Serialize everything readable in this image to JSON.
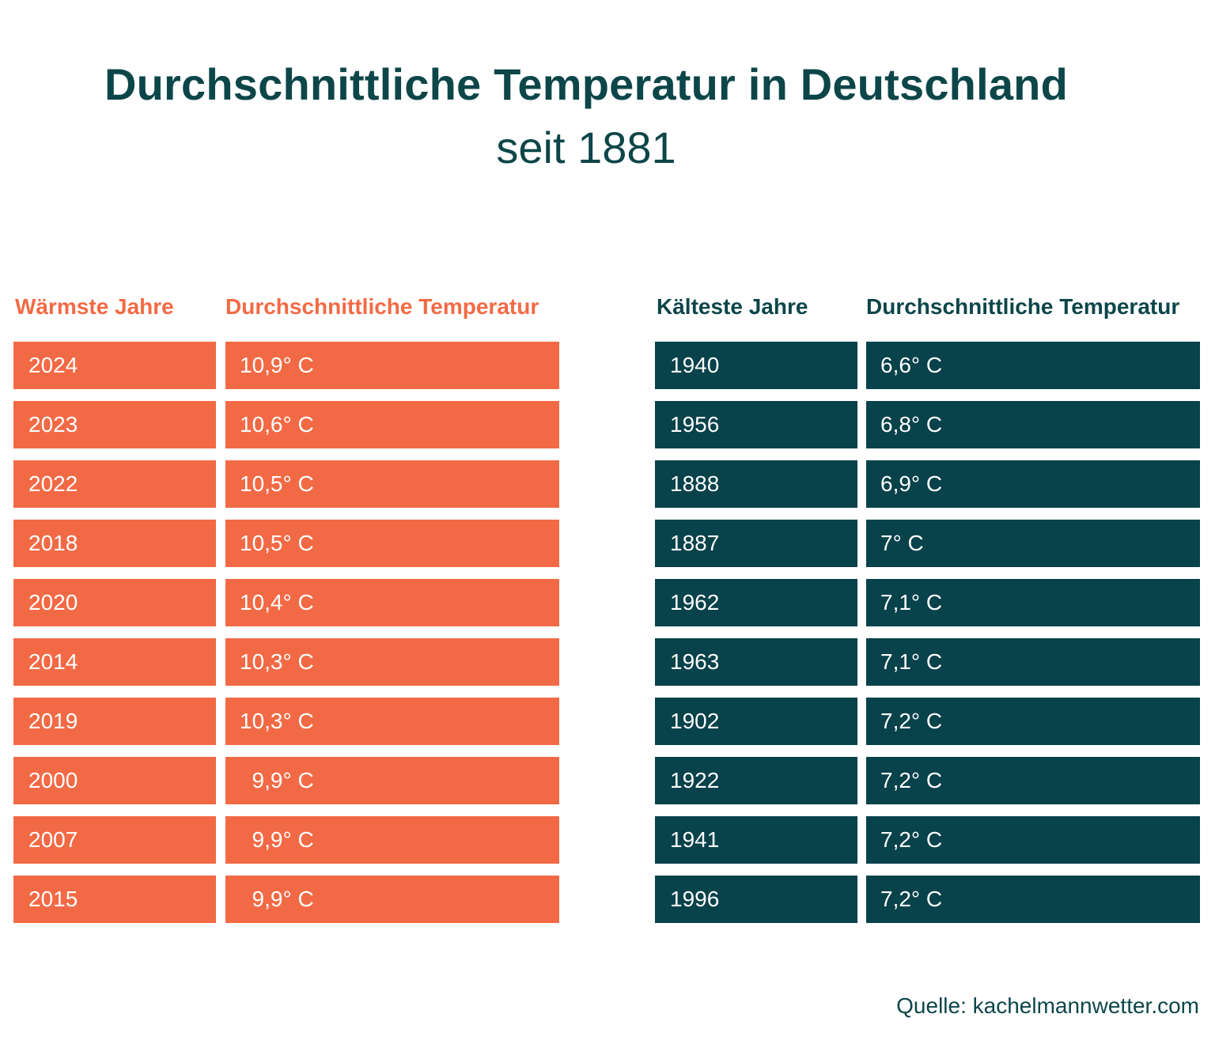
{
  "chart_data": {
    "type": "table",
    "title": "Durchschnittliche Temperatur in Deutschland",
    "subtitle": "seit 1881",
    "source": "Quelle: kachelmannwetter.com",
    "warmest": {
      "header_year": "Wärmste Jahre",
      "header_temp": "Durchschnittliche Temperatur",
      "color": "#f26a45",
      "rows": [
        {
          "year": "2024",
          "temp": "10,9° C"
        },
        {
          "year": "2023",
          "temp": "10,6° C"
        },
        {
          "year": "2022",
          "temp": "10,5° C"
        },
        {
          "year": "2018",
          "temp": "10,5° C"
        },
        {
          "year": "2020",
          "temp": "10,4° C"
        },
        {
          "year": "2014",
          "temp": "10,3° C"
        },
        {
          "year": "2019",
          "temp": "10,3° C"
        },
        {
          "year": "2000",
          "temp": "  9,9° C"
        },
        {
          "year": "2007",
          "temp": "  9,9° C"
        },
        {
          "year": "2015",
          "temp": "  9,9° C"
        }
      ]
    },
    "coldest": {
      "header_year": "Kälteste Jahre",
      "header_temp": "Durchschnittliche Temperatur",
      "color": "#08424a",
      "rows": [
        {
          "year": "1940",
          "temp": "6,6° C"
        },
        {
          "year": "1956",
          "temp": "6,8° C"
        },
        {
          "year": "1888",
          "temp": "6,9° C"
        },
        {
          "year": "1887",
          "temp": "7° C"
        },
        {
          "year": "1962",
          "temp": "7,1° C"
        },
        {
          "year": "1963",
          "temp": "7,1° C"
        },
        {
          "year": "1902",
          "temp": "7,2° C"
        },
        {
          "year": "1922",
          "temp": "7,2° C"
        },
        {
          "year": "1941",
          "temp": "7,2° C"
        },
        {
          "year": "1996",
          "temp": "7,2° C"
        }
      ]
    }
  }
}
